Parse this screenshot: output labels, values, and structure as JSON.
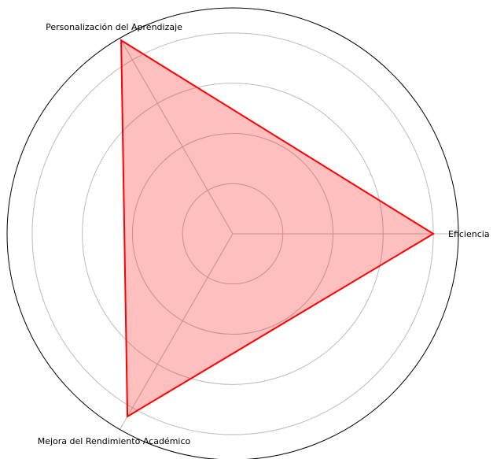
{
  "chart_data": {
    "type": "radar",
    "categories": [
      "Eficiencia",
      "Personalización del Aprendizaje",
      "Mejora del Rendimiento Académico"
    ],
    "values": [
      0.8,
      0.89,
      0.84
    ],
    "color": "#ff0000",
    "ylim": [
      0,
      0.9
    ],
    "yticks": [
      0.2,
      0.4,
      0.6,
      0.8
    ],
    "grid": true
  }
}
